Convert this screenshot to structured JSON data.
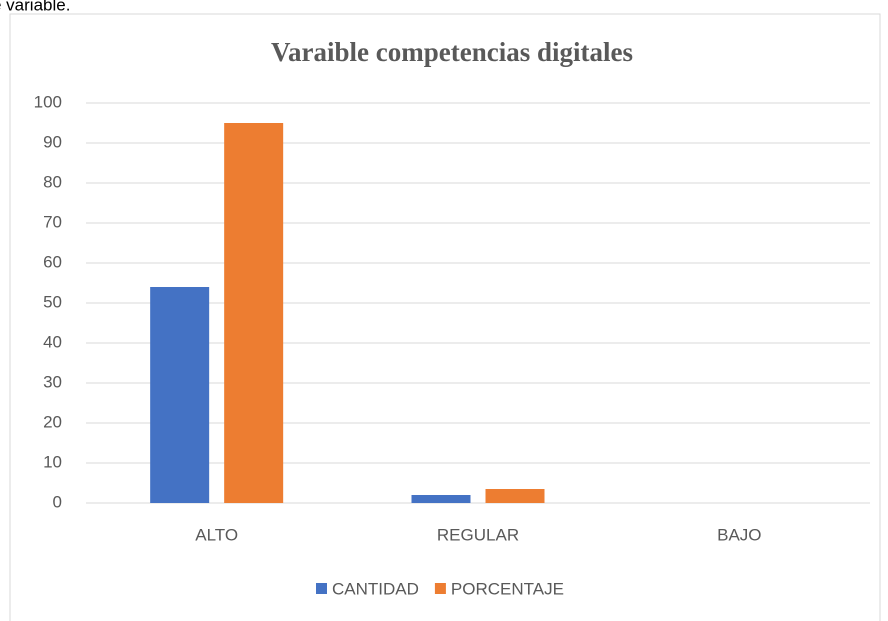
{
  "caption": "e variable.",
  "chart_data": {
    "type": "bar",
    "title": "Varaible competencias digitales",
    "categories": [
      "ALTO",
      "REGULAR",
      "BAJO"
    ],
    "series": [
      {
        "name": "CANTIDAD",
        "color": "#4472c4",
        "values": [
          54,
          2,
          0
        ]
      },
      {
        "name": "PORCENTAJE",
        "color": "#ed7d31",
        "values": [
          95,
          3.5,
          0
        ]
      }
    ],
    "ylim": [
      0,
      100
    ],
    "yticks": [
      0,
      10,
      20,
      30,
      40,
      50,
      60,
      70,
      80,
      90,
      100
    ],
    "grid": true,
    "legend": "bottom"
  }
}
